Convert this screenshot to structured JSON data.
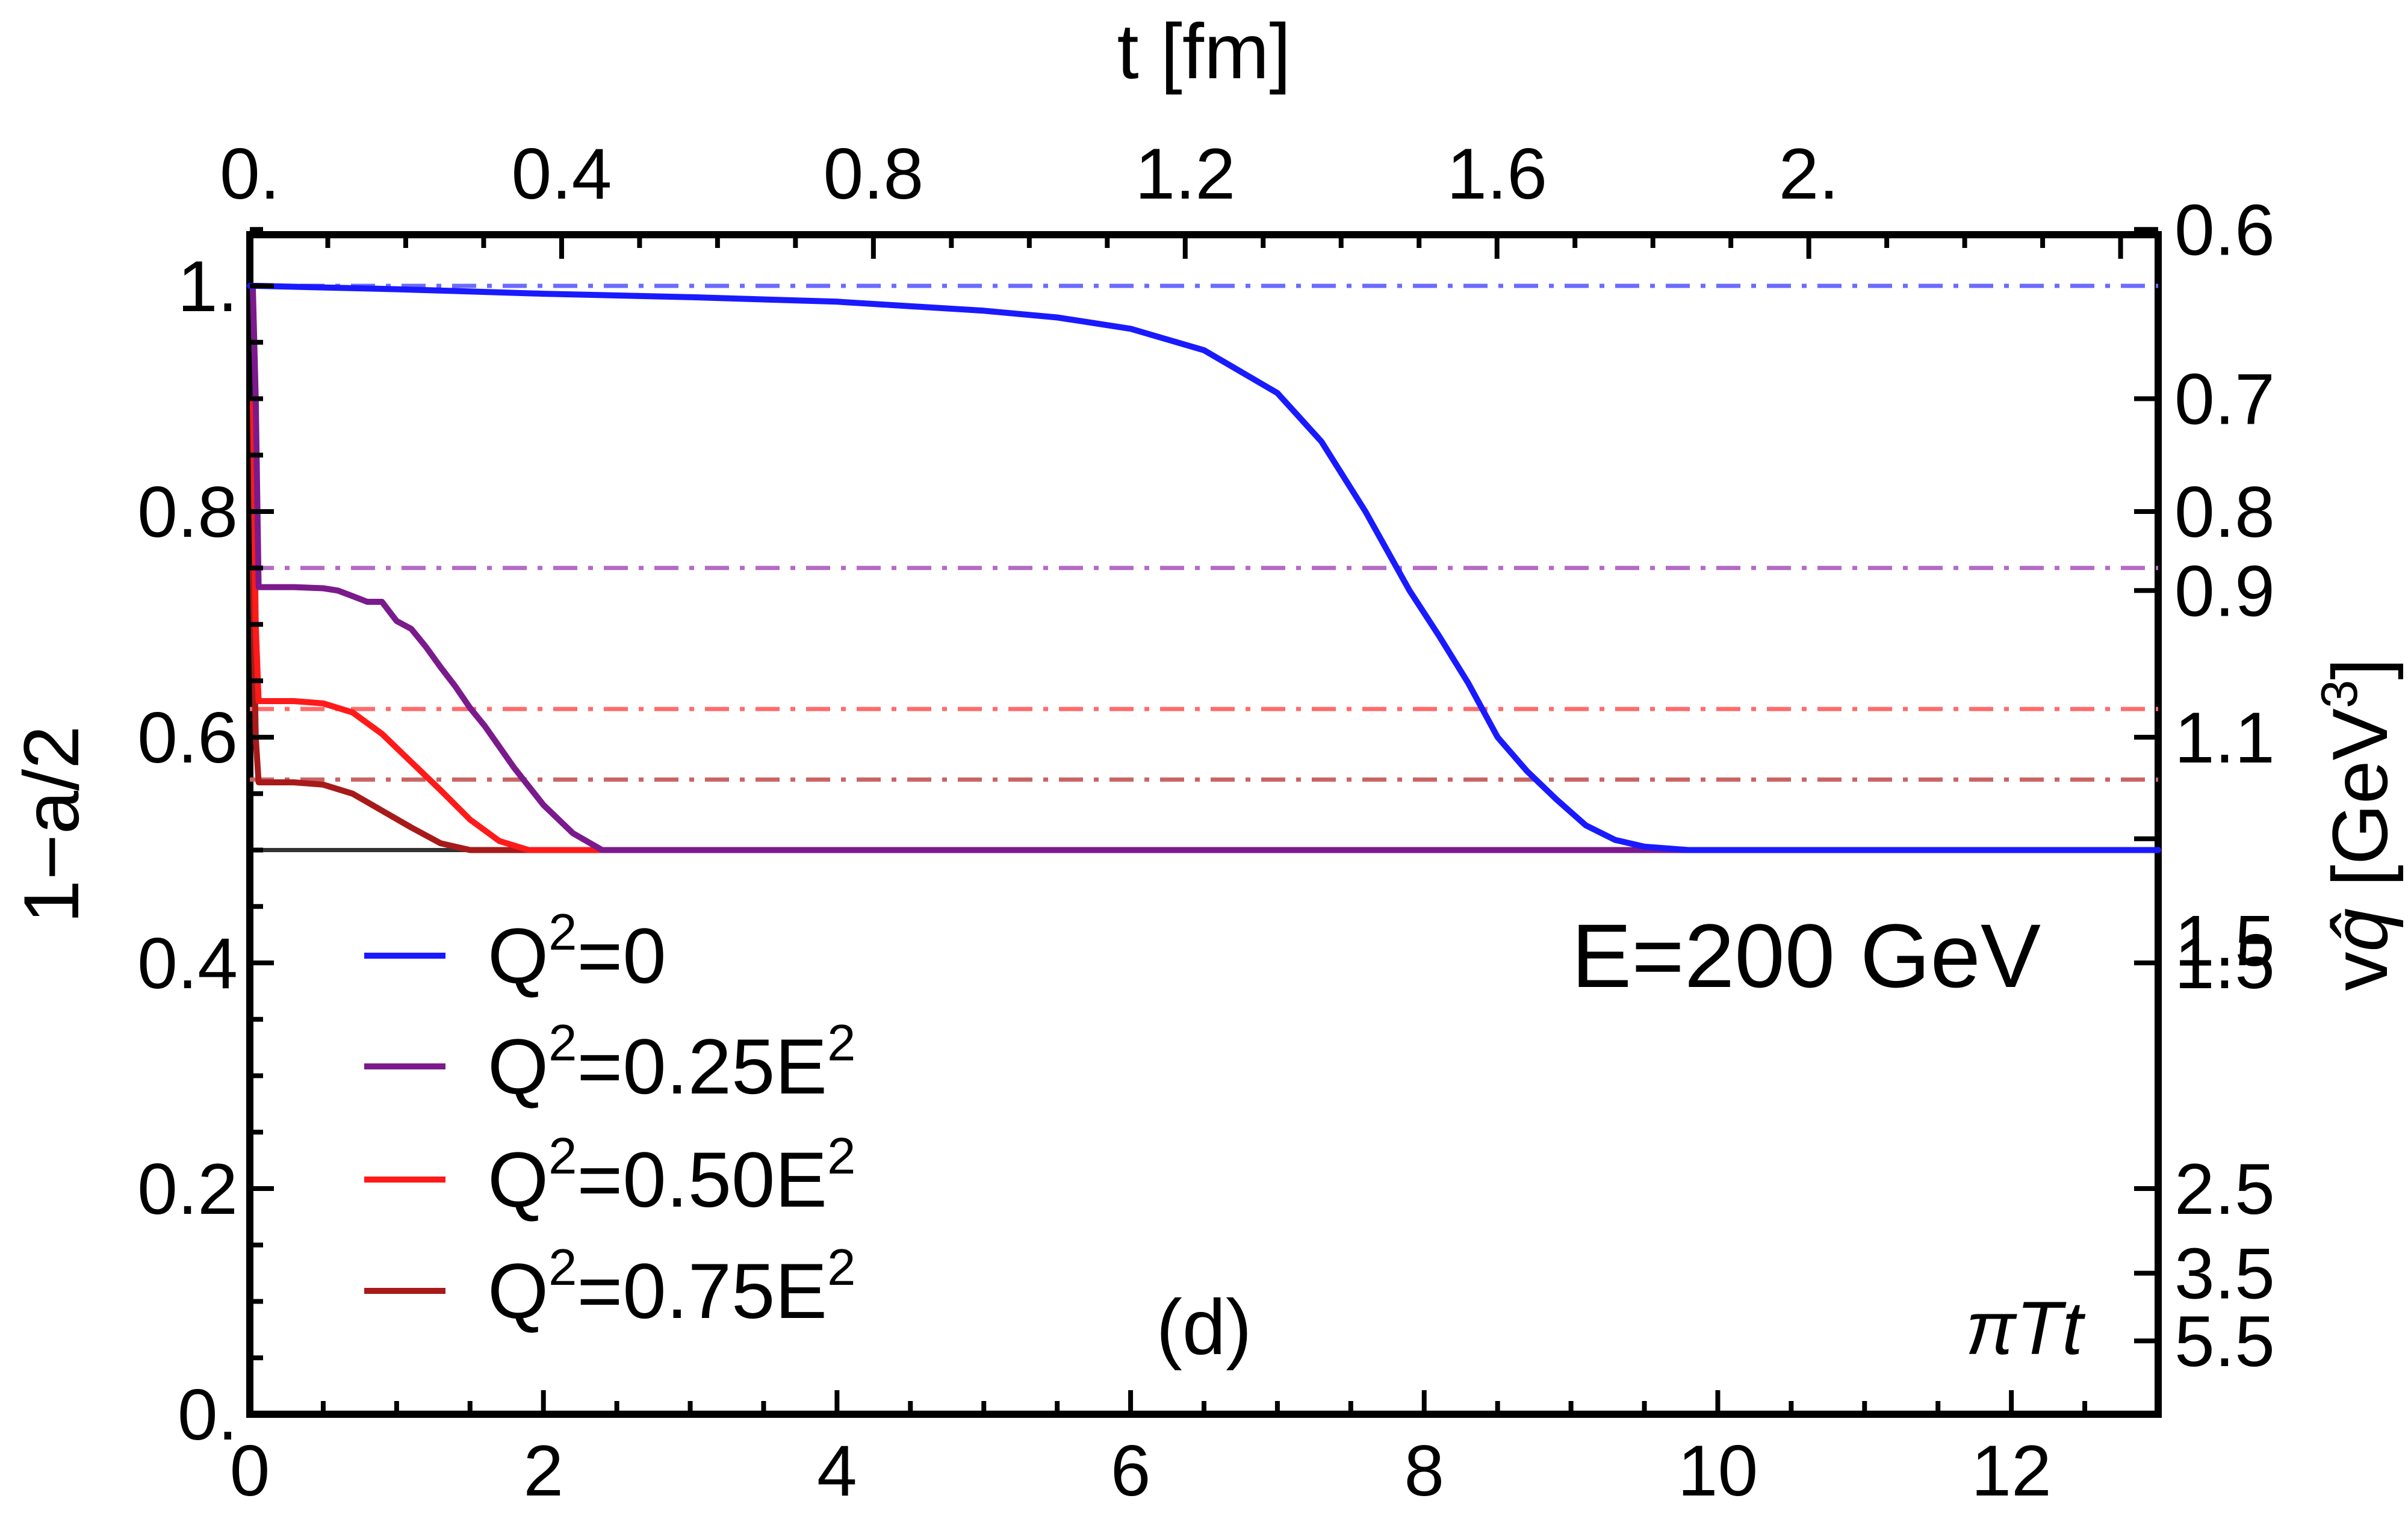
{
  "chart_data": {
    "type": "line",
    "panel_label": "(d)",
    "annotation": "E=200 GeV",
    "x_axis_name": "πTt",
    "xlim": [
      0,
      13
    ],
    "ylim": [
      0,
      1.05
    ],
    "x_ticks": [
      0,
      2,
      4,
      6,
      8,
      10,
      12
    ],
    "x_tick_labels": [
      "0",
      "2",
      "4",
      "6",
      "8",
      "10",
      "12"
    ],
    "y_ticks": [
      0,
      0.2,
      0.4,
      0.6,
      0.8,
      1.0
    ],
    "y_tick_labels": [
      "0.",
      "0.2",
      "0.4",
      "0.6",
      "0.8",
      "1."
    ],
    "ylabel": "1−a/2",
    "top_axis": {
      "label": "t [fm]",
      "ticks_x": [
        0,
        2.124,
        4.248,
        6.372,
        8.496,
        10.62
      ],
      "tick_labels": [
        "0.",
        "0.4",
        "0.8",
        "1.2",
        "1.6",
        "2."
      ]
    },
    "right_axis": {
      "label_parts": [
        "v",
        "q̂",
        " [GeV",
        "3",
        "]"
      ],
      "ticks_y": [
        1.05,
        0.9,
        0.8,
        0.73,
        0.6,
        0.51,
        0.4,
        0.2,
        0.125,
        0.065
      ],
      "tick_labels": [
        "0.6",
        "0.7",
        "0.8",
        "0.9",
        "1.1",
        "1.5",
        "2.5",
        "3.5",
        "5.5"
      ],
      "labeled_ticks_y": [
        1.05,
        0.9,
        0.8,
        0.73,
        0.6,
        0.4,
        0.2,
        0.125,
        0.065
      ]
    },
    "legend": {
      "position": "lower-left",
      "entries": [
        {
          "name": "Q",
          "sup1": "2",
          "rest": "=0",
          "sup2": "",
          "color": "#1a1aff"
        },
        {
          "name": "Q",
          "sup1": "2",
          "rest": "=0.25E",
          "sup2": "2",
          "color": "#7b1a8c"
        },
        {
          "name": "Q",
          "sup1": "2",
          "rest": "=0.50E",
          "sup2": "2",
          "color": "#ff1a1a"
        },
        {
          "name": "Q",
          "sup1": "2",
          "rest": "=0.75E",
          "sup2": "2",
          "color": "#a81a1a"
        }
      ]
    },
    "reference_lines": [
      {
        "y": 1.0,
        "color": "#6b6bff",
        "style": "dash-dot"
      },
      {
        "y": 0.75,
        "color": "#b36bc4",
        "style": "dash-dot"
      },
      {
        "y": 0.625,
        "color": "#ff6b6b",
        "style": "dash-dot"
      },
      {
        "y": 0.5625,
        "color": "#c96464",
        "style": "dash-dot"
      },
      {
        "y": 0.5,
        "color": "#333333",
        "style": "solid"
      }
    ],
    "series": [
      {
        "name": "Q^2=0",
        "color": "#1a1aff",
        "x": [
          0,
          0.05,
          1,
          2,
          3,
          4,
          5,
          5.5,
          6,
          6.5,
          7,
          7.3,
          7.6,
          7.9,
          8.1,
          8.3,
          8.5,
          8.7,
          8.9,
          9.1,
          9.3,
          9.5,
          9.8,
          10.2,
          11,
          12,
          13
        ],
        "y": [
          1.0,
          1.0,
          0.997,
          0.993,
          0.99,
          0.986,
          0.978,
          0.972,
          0.962,
          0.943,
          0.905,
          0.862,
          0.8,
          0.73,
          0.69,
          0.648,
          0.6,
          0.57,
          0.545,
          0.522,
          0.509,
          0.503,
          0.5,
          0.5,
          0.5,
          0.5,
          0.5
        ]
      },
      {
        "name": "Q^2=0.25E^2",
        "color": "#7b1a8c",
        "x": [
          0.02,
          0.04,
          0.06,
          0.1,
          0.3,
          0.5,
          0.6,
          0.7,
          0.8,
          0.9,
          1.0,
          1.1,
          1.2,
          1.3,
          1.4,
          1.5,
          1.6,
          1.8,
          2.0,
          2.2,
          2.4,
          13
        ],
        "y": [
          1.0,
          0.9,
          0.733,
          0.733,
          0.733,
          0.732,
          0.73,
          0.725,
          0.72,
          0.72,
          0.703,
          0.696,
          0.68,
          0.662,
          0.645,
          0.626,
          0.61,
          0.573,
          0.54,
          0.515,
          0.5,
          0.5
        ]
      },
      {
        "name": "Q^2=0.50E^2",
        "color": "#ff1a1a",
        "x": [
          0.02,
          0.04,
          0.06,
          0.1,
          0.3,
          0.5,
          0.7,
          0.9,
          1.1,
          1.3,
          1.5,
          1.7,
          1.9,
          13
        ],
        "y": [
          0.9,
          0.7,
          0.632,
          0.632,
          0.632,
          0.63,
          0.622,
          0.603,
          0.578,
          0.553,
          0.527,
          0.508,
          0.5,
          0.5
        ]
      },
      {
        "name": "Q^2=0.75E^2",
        "color": "#a81a1a",
        "x": [
          0.02,
          0.04,
          0.06,
          0.1,
          0.3,
          0.5,
          0.7,
          0.9,
          1.1,
          1.3,
          1.5,
          13
        ],
        "y": [
          0.75,
          0.6,
          0.56,
          0.56,
          0.56,
          0.558,
          0.55,
          0.535,
          0.52,
          0.506,
          0.5,
          0.5
        ]
      }
    ]
  }
}
